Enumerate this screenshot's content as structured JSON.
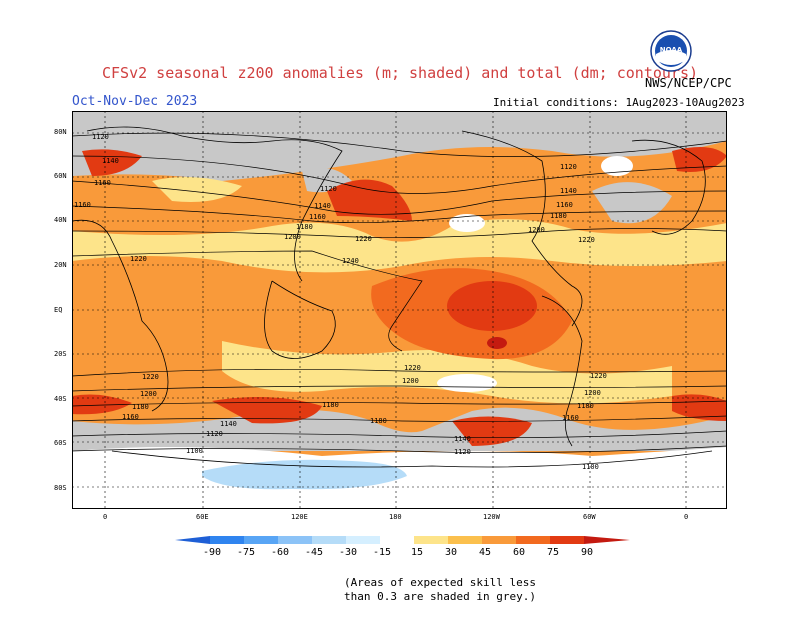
{
  "header": {
    "title": "CFSv2 seasonal z200 anomalies (m; shaded) and total (dm; contours)",
    "season": "Oct-Nov-Dec 2023",
    "initial_conditions": "Initial conditions: 1Aug2023-10Aug2023",
    "agency": "NWS/NCEP/CPC",
    "logo_text": "NOAA"
  },
  "axes": {
    "lat_labels": [
      "80N",
      "60N",
      "40N",
      "20N",
      "EQ",
      "20S",
      "40S",
      "60S",
      "80S"
    ],
    "lon_labels": [
      "0",
      "60E",
      "120E",
      "180",
      "120W",
      "60W",
      "0"
    ]
  },
  "contours": {
    "labels": [
      "1120",
      "1140",
      "1160",
      "1180",
      "1200",
      "1220",
      "1240",
      "1100"
    ]
  },
  "colorbar": {
    "ticks": [
      "-90",
      "-75",
      "-60",
      "-45",
      "-30",
      "-15",
      "15",
      "30",
      "45",
      "60",
      "75",
      "90"
    ],
    "colors": [
      "#1e5fd6",
      "#2f84ef",
      "#58a5f5",
      "#8cc3f7",
      "#b5dcf8",
      "#d5efff",
      "#ffffff",
      "#fde48a",
      "#fbc04d",
      "#f99a3a",
      "#f26a1f",
      "#e23a12",
      "#c41a10"
    ]
  },
  "footnote": {
    "line1": "(Areas of expected skill less",
    "line2": "than 0.3 are shaded in grey.)"
  }
}
